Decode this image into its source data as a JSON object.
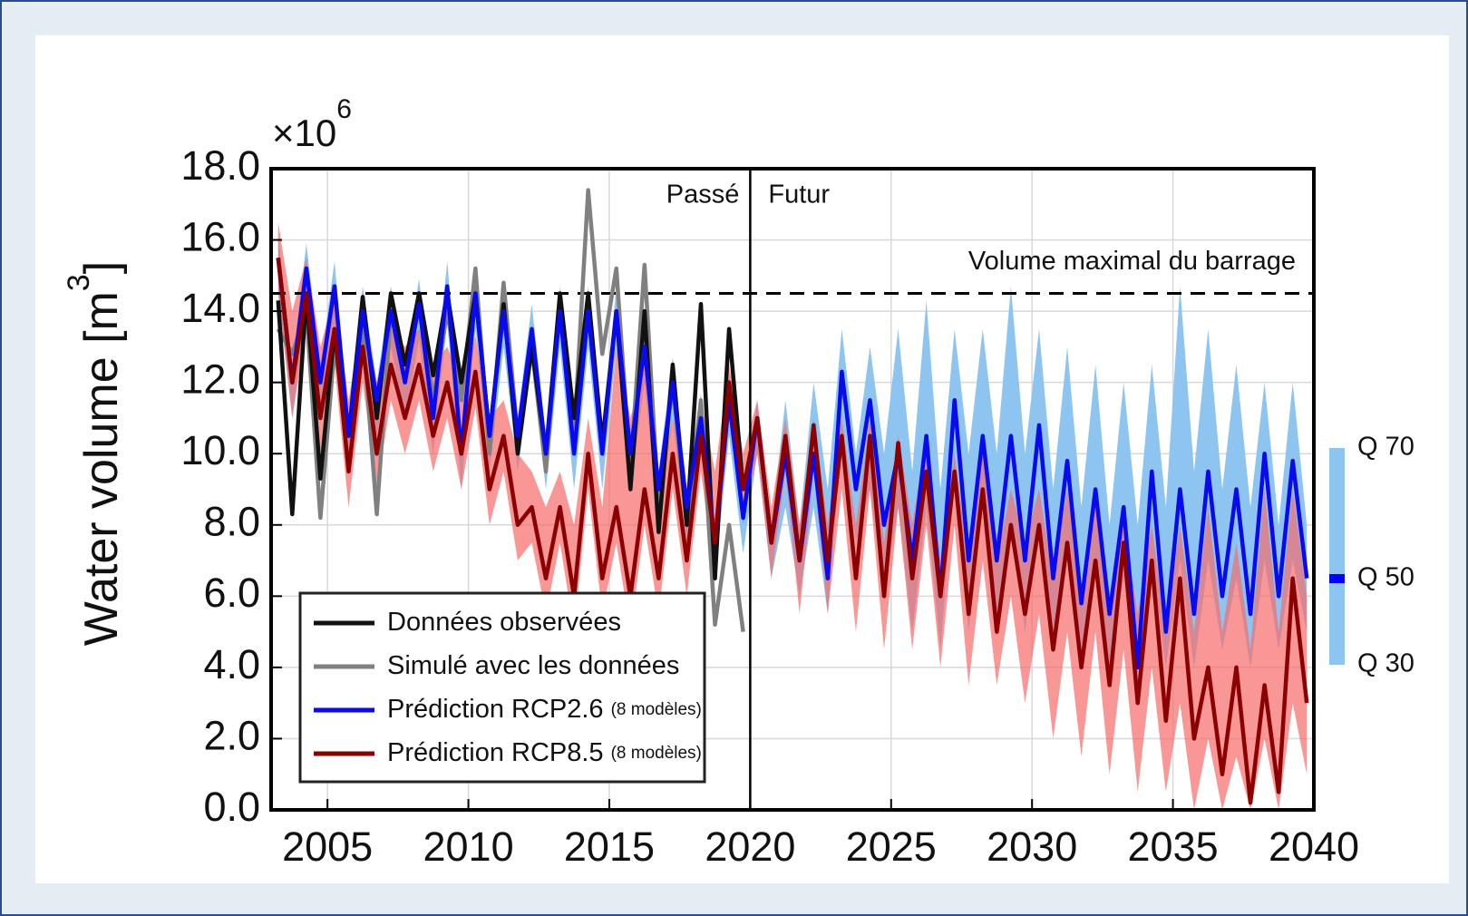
{
  "chart_data": {
    "type": "line",
    "ylabel": "Water volume [m",
    "ylabel_exp": "3",
    "ylabel_end": "]",
    "offset_base": "×10",
    "offset_exp": "6",
    "xlim": [
      2003,
      2040
    ],
    "xticks": [
      2005,
      2010,
      2015,
      2020,
      2025,
      2030,
      2035,
      2040
    ],
    "ylim": [
      0,
      18
    ],
    "yticks": [
      {
        "value": 0,
        "label": "0.0"
      },
      {
        "value": 2,
        "label": "2.0"
      },
      {
        "value": 4,
        "label": "4.0"
      },
      {
        "value": 6,
        "label": "6.0"
      },
      {
        "value": 8,
        "label": "8.0"
      },
      {
        "value": 10,
        "label": "10.0"
      },
      {
        "value": 12,
        "label": "12.0"
      },
      {
        "value": 14,
        "label": "14.0"
      },
      {
        "value": 16,
        "label": "16.0"
      },
      {
        "value": 18,
        "label": "18.0"
      }
    ],
    "grid": true,
    "hline": {
      "value": 14.5,
      "label": "Volume maximal du barrage"
    },
    "vline": {
      "value": 2020,
      "left_label": "Passé",
      "right_label": "Futur"
    },
    "quantile_legend": {
      "labels": [
        "Q 70",
        "Q 50",
        "Q 30"
      ],
      "band_color": "#8ec5f0",
      "median_color": "#0000ff"
    },
    "x": [
      2003.25,
      2003.75,
      2004.25,
      2004.75,
      2005.25,
      2005.75,
      2006.25,
      2006.75,
      2007.25,
      2007.75,
      2008.25,
      2008.75,
      2009.25,
      2009.75,
      2010.25,
      2010.75,
      2011.25,
      2011.75,
      2012.25,
      2012.75,
      2013.25,
      2013.75,
      2014.25,
      2014.75,
      2015.25,
      2015.75,
      2016.25,
      2016.75,
      2017.25,
      2017.75,
      2018.25,
      2018.75,
      2019.25,
      2019.75,
      2020.25,
      2020.75,
      2021.25,
      2021.75,
      2022.25,
      2022.75,
      2023.25,
      2023.75,
      2024.25,
      2024.75,
      2025.25,
      2025.75,
      2026.25,
      2026.75,
      2027.25,
      2027.75,
      2028.25,
      2028.75,
      2029.25,
      2029.75,
      2030.25,
      2030.75,
      2031.25,
      2031.75,
      2032.25,
      2032.75,
      2033.25,
      2033.75,
      2034.25,
      2034.75,
      2035.25,
      2035.75,
      2036.25,
      2036.75,
      2037.25,
      2037.75,
      2038.25,
      2038.75,
      2039.25,
      2039.75
    ],
    "series": [
      {
        "name": "Données observées",
        "color": "#111111",
        "values": [
          14.3,
          8.3,
          14.5,
          9.3,
          13.5,
          10.5,
          14.4,
          11.0,
          14.5,
          12.5,
          14.5,
          12.2,
          14.5,
          12.0,
          14.5,
          10.5,
          14.2,
          10.0,
          13.0,
          10.0,
          14.5,
          11.0,
          14.5,
          10.3,
          14.0,
          9.0,
          14.0,
          7.8,
          12.5,
          8.0,
          14.2,
          6.5,
          13.5,
          9.0,
          null,
          null,
          null,
          null,
          null,
          null,
          null,
          null,
          null,
          null,
          null,
          null,
          null,
          null,
          null,
          null,
          null,
          null,
          null,
          null,
          null,
          null,
          null,
          null,
          null,
          null,
          null,
          null,
          null,
          null,
          null,
          null,
          null,
          null,
          null,
          null,
          null,
          null,
          null,
          null
        ]
      },
      {
        "name": "Simulé avec les données",
        "color": "#808080",
        "values": [
          13.5,
          12.8,
          14.0,
          8.2,
          13.0,
          10.5,
          13.5,
          8.3,
          14.0,
          12.0,
          14.5,
          11.5,
          14.0,
          11.5,
          15.2,
          10.0,
          14.8,
          10.5,
          13.0,
          9.5,
          14.3,
          10.5,
          17.4,
          12.8,
          15.2,
          9.5,
          15.3,
          8.5,
          12.0,
          8.0,
          11.5,
          5.2,
          8.0,
          5.0,
          null,
          null,
          null,
          null,
          null,
          null,
          null,
          null,
          null,
          null,
          null,
          null,
          null,
          null,
          null,
          null,
          null,
          null,
          null,
          null,
          null,
          null,
          null,
          null,
          null,
          null,
          null,
          null,
          null,
          null,
          null,
          null,
          null,
          null,
          null,
          null,
          null,
          null,
          null,
          null
        ]
      },
      {
        "name": "Prédiction RCP2.6",
        "note": "(8 modèles)",
        "color": "#0a0aee",
        "band_color": "#8ec5f0",
        "values": [
          15.5,
          12.0,
          15.2,
          12.0,
          14.7,
          10.5,
          14.0,
          11.5,
          14.0,
          12.0,
          14.2,
          11.0,
          14.7,
          10.0,
          14.5,
          10.5,
          14.0,
          10.5,
          13.5,
          10.0,
          14.0,
          10.0,
          14.0,
          10.0,
          14.0,
          10.0,
          13.0,
          9.0,
          12.0,
          8.5,
          11.0,
          7.5,
          11.5,
          8.2,
          11.0,
          7.5,
          10.0,
          7.0,
          10.0,
          6.5,
          12.3,
          9.0,
          11.5,
          8.0,
          10.0,
          7.0,
          10.5,
          6.0,
          11.5,
          7.0,
          10.5,
          7.0,
          10.5,
          7.0,
          10.8,
          6.5,
          9.8,
          5.8,
          9.0,
          5.5,
          8.5,
          4.0,
          9.5,
          5.0,
          9.0,
          5.5,
          9.5,
          6.0,
          9.0,
          5.5,
          10.0,
          6.0,
          9.8,
          6.5
        ],
        "upper": [
          16.2,
          12.5,
          15.9,
          12.5,
          15.4,
          11.0,
          14.7,
          12.0,
          14.7,
          12.5,
          14.9,
          11.5,
          15.4,
          10.5,
          15.2,
          11.0,
          14.7,
          11.0,
          14.2,
          10.5,
          14.7,
          10.5,
          14.7,
          10.5,
          14.7,
          10.5,
          13.7,
          9.5,
          12.7,
          9.0,
          11.7,
          8.0,
          12.2,
          8.7,
          11.5,
          8.0,
          11.5,
          8.0,
          12.0,
          9.0,
          13.5,
          10.0,
          13.0,
          10.0,
          13.5,
          9.5,
          14.3,
          9.0,
          13.5,
          10.0,
          13.5,
          10.0,
          14.7,
          10.0,
          13.5,
          9.0,
          13.0,
          8.5,
          12.5,
          8.0,
          12.0,
          8.0,
          12.5,
          8.5,
          14.7,
          9.5,
          13.5,
          9.0,
          12.5,
          8.5,
          12.0,
          8.0,
          12.0,
          8.0
        ],
        "lower": [
          14.5,
          11.0,
          14.2,
          11.0,
          13.7,
          9.5,
          13.0,
          10.5,
          13.0,
          11.0,
          13.2,
          10.0,
          13.7,
          9.0,
          13.5,
          9.5,
          13.0,
          9.5,
          12.5,
          9.0,
          13.0,
          9.0,
          13.0,
          9.0,
          13.0,
          9.0,
          12.0,
          8.0,
          11.0,
          7.5,
          10.0,
          6.5,
          10.5,
          7.2,
          10.0,
          6.5,
          8.5,
          6.0,
          8.5,
          5.5,
          10.5,
          7.5,
          9.0,
          6.0,
          8.5,
          5.0,
          8.5,
          4.5,
          9.5,
          5.0,
          8.5,
          5.0,
          8.0,
          5.0,
          8.0,
          4.5,
          7.5,
          4.5,
          7.0,
          4.0,
          6.5,
          3.8,
          7.0,
          4.0,
          7.0,
          4.0,
          7.0,
          4.5,
          6.5,
          4.0,
          7.0,
          4.5,
          7.0,
          5.0
        ]
      },
      {
        "name": "Prédiction RCP8.5",
        "note": "(8 modèles)",
        "color": "#8b0000",
        "band_color": "#f66b6b",
        "values": [
          15.5,
          12.0,
          14.5,
          11.0,
          13.5,
          9.5,
          13.0,
          10.0,
          12.5,
          11.0,
          12.5,
          10.5,
          12.0,
          10.0,
          12.3,
          9.0,
          10.5,
          8.0,
          8.5,
          6.5,
          8.5,
          6.0,
          10.0,
          6.5,
          8.5,
          6.0,
          9.0,
          6.5,
          10.0,
          7.0,
          10.5,
          7.5,
          12.0,
          9.0,
          11.0,
          7.5,
          10.5,
          7.0,
          10.8,
          7.0,
          10.5,
          6.5,
          10.5,
          6.0,
          10.3,
          6.5,
          9.5,
          6.0,
          9.5,
          5.5,
          9.0,
          5.0,
          8.0,
          5.5,
          8.0,
          4.5,
          7.5,
          4.0,
          7.0,
          3.5,
          7.5,
          3.0,
          7.0,
          2.5,
          6.5,
          2.0,
          4.0,
          1.0,
          4.0,
          0.2,
          3.5,
          0.5,
          6.5,
          3.0
        ],
        "upper": [
          16.5,
          14.0,
          15.5,
          13.0,
          14.5,
          11.5,
          14.0,
          12.0,
          13.5,
          13.0,
          13.5,
          12.5,
          13.0,
          12.0,
          13.3,
          11.0,
          11.5,
          10.0,
          9.5,
          8.5,
          9.5,
          8.0,
          11.0,
          8.5,
          13.0,
          11.0,
          12.5,
          9.0,
          11.0,
          9.0,
          11.5,
          9.5,
          12.5,
          10.0,
          11.5,
          8.5,
          11.0,
          8.0,
          11.0,
          8.0,
          11.0,
          8.0,
          11.0,
          7.5,
          10.5,
          8.0,
          10.5,
          7.0,
          10.0,
          7.0,
          10.0,
          7.0,
          9.0,
          7.5,
          9.0,
          6.5,
          9.0,
          6.0,
          9.0,
          6.0,
          8.0,
          5.5,
          8.0,
          5.0,
          8.0,
          5.0,
          8.5,
          5.0,
          7.5,
          4.5,
          9.0,
          5.0,
          9.0,
          6.0
        ],
        "lower": [
          14.5,
          11.0,
          13.5,
          10.0,
          12.5,
          8.5,
          12.0,
          9.0,
          11.5,
          10.0,
          11.5,
          9.5,
          11.0,
          9.0,
          11.3,
          8.0,
          9.5,
          7.0,
          7.5,
          5.5,
          7.5,
          5.0,
          9.0,
          5.5,
          7.5,
          5.0,
          8.0,
          5.5,
          9.0,
          6.0,
          9.5,
          6.5,
          11.0,
          8.0,
          10.0,
          6.5,
          9.5,
          5.5,
          9.5,
          5.5,
          9.0,
          5.0,
          9.0,
          4.5,
          8.5,
          4.5,
          8.0,
          4.0,
          8.0,
          3.5,
          7.0,
          3.5,
          6.0,
          3.0,
          5.5,
          2.0,
          5.0,
          1.5,
          5.0,
          1.0,
          4.5,
          0.5,
          4.0,
          0.5,
          3.0,
          0.0,
          2.0,
          0.0,
          1.5,
          0.0,
          2.0,
          0.0,
          3.0,
          1.0
        ]
      }
    ]
  }
}
